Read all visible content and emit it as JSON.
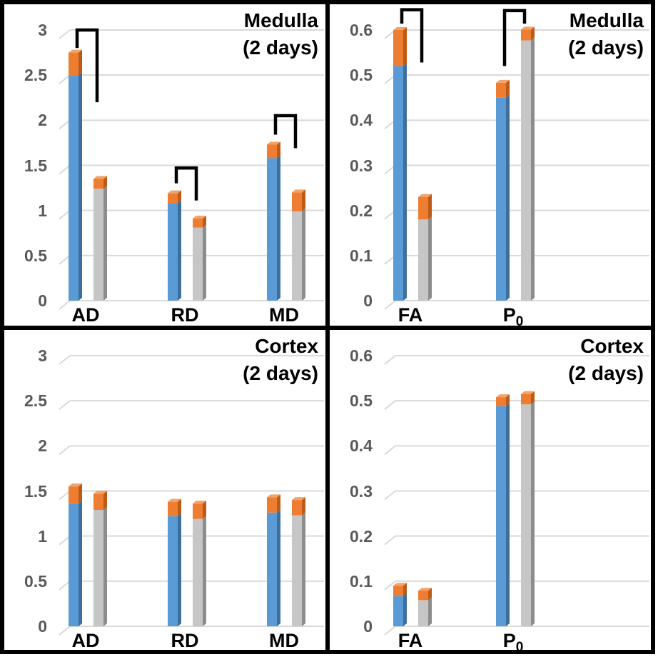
{
  "figure": {
    "layout": "2x2 panels",
    "description_visible_text_only": true
  },
  "colors": {
    "background": "#FFFFFF",
    "panel_border": "#000000",
    "gridline": "#D9D9D9",
    "tick_label": "#595959",
    "category_label": "#000000",
    "title": "#000000",
    "bracket": "#000000",
    "error_cap": "#ED7D31",
    "error_cap_side": "#BE5A14",
    "error_cap_top": "#F4A269"
  },
  "chart_data": [
    {
      "panel": "top-left",
      "type": "bar",
      "title": "Medulla",
      "subtitle": "(2 days)",
      "ylim": [
        0,
        3
      ],
      "ytick_step": 0.5,
      "yticks": [
        "0",
        "0.5",
        "1",
        "1.5",
        "2",
        "2.5",
        "3"
      ],
      "grid": true,
      "categories": [
        {
          "label": "AD"
        },
        {
          "label": "RD"
        },
        {
          "label": "MD"
        }
      ],
      "series": [
        {
          "name": "series1-blue",
          "color": "#5B9BD5",
          "side_color": "#3D6F9E",
          "values": [
            2.5,
            1.08,
            1.58
          ],
          "error_cap_tops": [
            2.75,
            1.19,
            1.73
          ]
        },
        {
          "name": "series2-gray",
          "color": "#C6C6C6",
          "side_color": "#8C8C8C",
          "values": [
            1.24,
            0.81,
            0.99
          ],
          "error_cap_tops": [
            1.35,
            0.91,
            1.2
          ]
        }
      ],
      "significance_brackets": [
        {
          "category": "AD",
          "top": 3.0,
          "left_end": 2.8,
          "right_end": 2.2
        },
        {
          "category": "RD",
          "top": 1.47,
          "left_end": 1.3,
          "right_end": 1.11
        },
        {
          "category": "MD",
          "top": 2.05,
          "left_end": 1.84,
          "right_end": 1.69
        }
      ]
    },
    {
      "panel": "top-right",
      "type": "bar",
      "title": "Medulla",
      "subtitle": "(2 days)",
      "ylim": [
        0,
        0.6
      ],
      "ytick_step": 0.1,
      "yticks": [
        "0",
        "0.1",
        "0.2",
        "0.3",
        "0.4",
        "0.5",
        "0.6"
      ],
      "grid": true,
      "categories": [
        {
          "label": "FA"
        },
        {
          "label": "P",
          "sub": "0"
        }
      ],
      "series": [
        {
          "name": "series1-blue",
          "color": "#5B9BD5",
          "side_color": "#3D6F9E",
          "values": [
            0.52,
            0.45
          ],
          "error_cap_tops": [
            0.6,
            0.483
          ]
        },
        {
          "name": "series2-gray",
          "color": "#C6C6C6",
          "side_color": "#8C8C8C",
          "values": [
            0.18,
            0.577
          ],
          "error_cap_tops": [
            0.23,
            0.601
          ]
        }
      ],
      "significance_brackets": [
        {
          "category": "FA",
          "top": 0.645,
          "left_end": 0.614,
          "right_end": 0.528
        },
        {
          "category": "P0",
          "top": 0.643,
          "left_end": 0.52,
          "right_end": 0.614
        }
      ]
    },
    {
      "panel": "bottom-left",
      "type": "bar",
      "title": "Cortex",
      "subtitle": "(2 days)",
      "ylim": [
        0,
        3
      ],
      "ytick_step": 0.5,
      "yticks": [
        "0",
        "0.5",
        "1",
        "1.5",
        "2",
        "2.5",
        "3"
      ],
      "grid": true,
      "categories": [
        {
          "label": "AD"
        },
        {
          "label": "RD"
        },
        {
          "label": "MD"
        }
      ],
      "series": [
        {
          "name": "series1-blue",
          "color": "#5B9BD5",
          "side_color": "#3D6F9E",
          "values": [
            1.36,
            1.22,
            1.26
          ],
          "error_cap_tops": [
            1.55,
            1.38,
            1.43
          ]
        },
        {
          "name": "series2-gray",
          "color": "#C6C6C6",
          "side_color": "#8C8C8C",
          "values": [
            1.29,
            1.19,
            1.23
          ],
          "error_cap_tops": [
            1.47,
            1.36,
            1.4
          ]
        }
      ],
      "significance_brackets": []
    },
    {
      "panel": "bottom-right",
      "type": "bar",
      "title": "Cortex",
      "subtitle": "(2 days)",
      "ylim": [
        0,
        0.6
      ],
      "ytick_step": 0.1,
      "yticks": [
        "0",
        "0.1",
        "0.2",
        "0.3",
        "0.4",
        "0.5",
        "0.6"
      ],
      "grid": true,
      "categories": [
        {
          "label": "FA"
        },
        {
          "label": "P",
          "sub": "0"
        }
      ],
      "series": [
        {
          "name": "series1-blue",
          "color": "#5B9BD5",
          "side_color": "#3D6F9E",
          "values": [
            0.067,
            0.488
          ],
          "error_cap_tops": [
            0.09,
            0.508
          ]
        },
        {
          "name": "series2-gray",
          "color": "#C6C6C6",
          "side_color": "#8C8C8C",
          "values": [
            0.058,
            0.492
          ],
          "error_cap_tops": [
            0.079,
            0.515
          ]
        }
      ],
      "significance_brackets": []
    }
  ]
}
